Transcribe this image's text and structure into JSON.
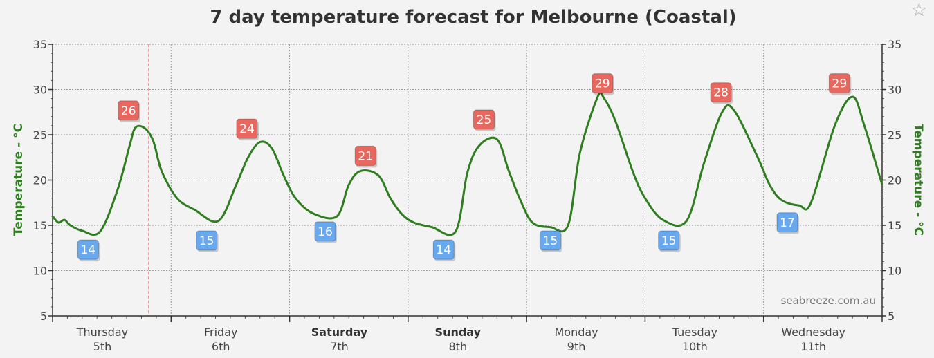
{
  "chart_data": {
    "type": "line",
    "title": "7 day temperature forecast for Melbourne (Coastal)",
    "ylabel_left": "Temperature - °C",
    "ylabel_right": "Temperature - °C",
    "ylim": [
      5,
      35
    ],
    "yticks": [
      5,
      10,
      15,
      20,
      25,
      30,
      35
    ],
    "grid": true,
    "line_color": "#2e7d1f",
    "max_color": "#e8675e",
    "min_color": "#67a8ee",
    "days": [
      {
        "name": "Thursday",
        "date": "5th",
        "bold": false
      },
      {
        "name": "Friday",
        "date": "6th",
        "bold": false
      },
      {
        "name": "Saturday",
        "date": "7th",
        "bold": true
      },
      {
        "name": "Sunday",
        "date": "8th",
        "bold": true
      },
      {
        "name": "Monday",
        "date": "9th",
        "bold": false
      },
      {
        "name": "Tuesday",
        "date": "10th",
        "bold": false
      },
      {
        "name": "Wednesday",
        "date": "11th",
        "bold": false
      }
    ],
    "series": [
      {
        "x": [
          0.0,
          0.05,
          0.1,
          0.15,
          0.25,
          0.4,
          0.55,
          0.65,
          0.7,
          0.78,
          0.85,
          0.92,
          1.05,
          1.2,
          1.4,
          1.55,
          1.65,
          1.75,
          1.85,
          1.95,
          2.05,
          2.2,
          2.4,
          2.5,
          2.6,
          2.75,
          2.85,
          2.95,
          3.05,
          3.2,
          3.4,
          3.5,
          3.6,
          3.75,
          3.85,
          3.95,
          4.05,
          4.2,
          4.35,
          4.45,
          4.6,
          4.65,
          4.75,
          4.9,
          5.0,
          5.15,
          5.35,
          5.5,
          5.65,
          5.75,
          5.95,
          6.05,
          6.15,
          6.3,
          6.4,
          6.6,
          6.75,
          6.85,
          7.0
        ],
        "y": [
          16.0,
          15.3,
          15.6,
          15.0,
          14.4,
          14.3,
          19.0,
          23.8,
          25.8,
          25.7,
          24.3,
          21.0,
          18.0,
          16.7,
          15.5,
          19.5,
          22.5,
          24.2,
          23.5,
          20.5,
          18.0,
          16.3,
          16.0,
          19.5,
          21.0,
          20.5,
          18.0,
          16.2,
          15.3,
          14.8,
          14.3,
          20.8,
          23.8,
          24.5,
          21.0,
          17.7,
          15.3,
          14.8,
          15.0,
          23.0,
          29.2,
          29.1,
          26.5,
          20.8,
          18.0,
          15.6,
          15.5,
          22.0,
          27.5,
          27.7,
          22.5,
          19.5,
          17.8,
          17.2,
          17.5,
          26.0,
          29.2,
          26.0,
          19.5
        ]
      }
    ],
    "max_labels": [
      {
        "x": 0.64,
        "value": 26
      },
      {
        "x": 1.64,
        "value": 24
      },
      {
        "x": 2.64,
        "value": 21
      },
      {
        "x": 3.64,
        "value": 25
      },
      {
        "x": 4.64,
        "value": 29
      },
      {
        "x": 5.64,
        "value": 28
      },
      {
        "x": 6.64,
        "value": 29
      }
    ],
    "min_labels": [
      {
        "x": 0.3,
        "value": 14
      },
      {
        "x": 1.3,
        "value": 15
      },
      {
        "x": 2.3,
        "value": 16
      },
      {
        "x": 3.3,
        "value": 14
      },
      {
        "x": 4.2,
        "value": 15
      },
      {
        "x": 5.2,
        "value": 15
      },
      {
        "x": 6.2,
        "value": 17
      }
    ],
    "now_marker_x": 0.81,
    "watermark": "seabreeze.com.au"
  },
  "favorite_icon": "☆"
}
